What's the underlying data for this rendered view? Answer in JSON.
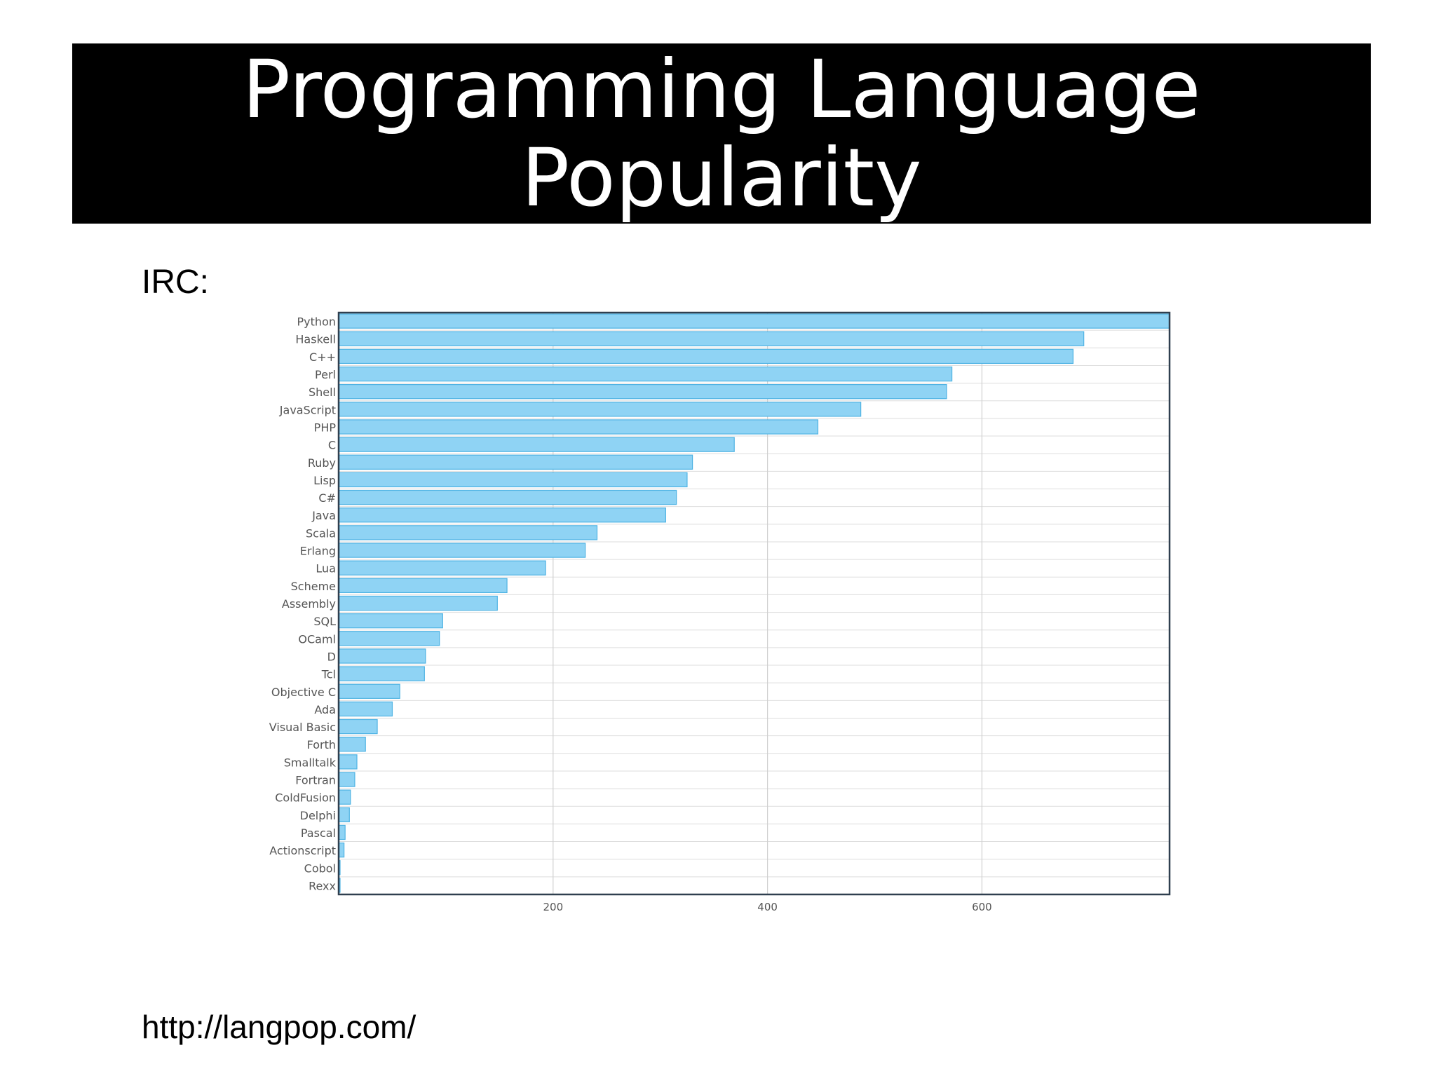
{
  "slide": {
    "title": "Programming Language Popularity",
    "subtitle": "IRC:",
    "source": "http://langpop.com/"
  },
  "chart_data": {
    "type": "bar",
    "orientation": "horizontal",
    "categories": [
      "Python",
      "Haskell",
      "C++",
      "Perl",
      "Shell",
      "JavaScript",
      "PHP",
      "C",
      "Ruby",
      "Lisp",
      "C#",
      "Java",
      "Scala",
      "Erlang",
      "Lua",
      "Scheme",
      "Assembly",
      "SQL",
      "OCaml",
      "D",
      "Tcl",
      "Objective C",
      "Ada",
      "Visual Basic",
      "Forth",
      "Smalltalk",
      "Fortran",
      "ColdFusion",
      "Delphi",
      "Pascal",
      "Actionscript",
      "Cobol",
      "Rexx"
    ],
    "values": [
      775,
      695,
      685,
      572,
      567,
      487,
      447,
      369,
      330,
      325,
      315,
      305,
      241,
      230,
      193,
      157,
      148,
      97,
      94,
      81,
      80,
      57,
      50,
      36,
      25,
      17,
      15,
      11,
      10,
      6,
      5,
      1,
      1
    ],
    "xlim": [
      0,
      775
    ],
    "xticks": [
      200,
      400,
      600
    ],
    "grid": true,
    "bar_color": "#8fd3f4",
    "bar_edge_color": "#4fb3e3"
  }
}
